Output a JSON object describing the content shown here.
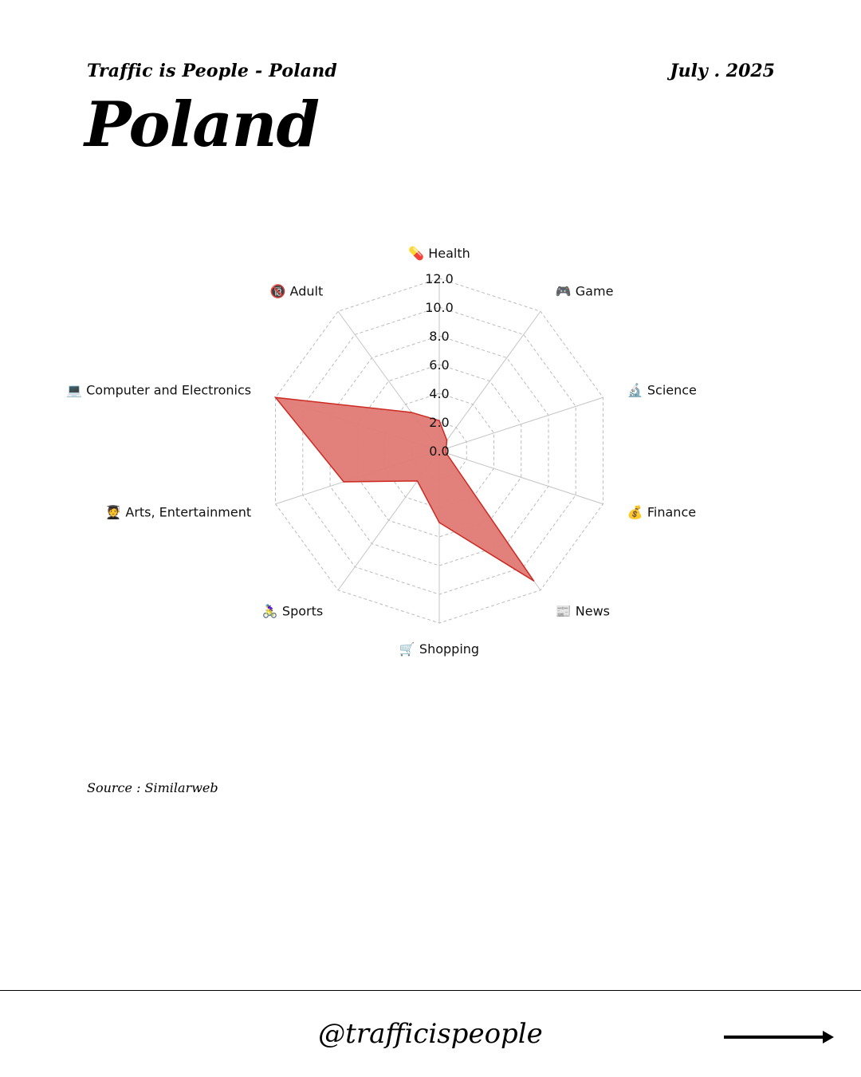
{
  "header": {
    "subtitle": "Traffic is People - Poland",
    "date": "July . 2025",
    "title": "Poland"
  },
  "source": "Source : Similarweb",
  "footer": {
    "handle": "@trafficispeople",
    "arrow_icon": "arrow-right-icon"
  },
  "chart_data": {
    "type": "radar",
    "categories": [
      "💊 Health",
      "🎮 Game",
      "🔬 Science",
      "💰 Finance",
      "📰 News",
      "🛒 Shopping",
      "🚴‍♀️ Sports",
      "🧑‍🎓 Arts, Entertainment",
      "💻 Computer and Electronics",
      "🔞 Adult"
    ],
    "series": [
      {
        "values": [
          2.1,
          0.9,
          0.5,
          0.5,
          11.2,
          5.0,
          2.6,
          7.0,
          12.0,
          3.3
        ],
        "color": "#e07a74",
        "stroke": "#cc2a22"
      }
    ],
    "rlim": [
      0,
      12
    ],
    "ticks": [
      "0.0",
      "2.0",
      "4.0",
      "6.0",
      "8.0",
      "10.0",
      "12.0"
    ],
    "grid": true
  }
}
